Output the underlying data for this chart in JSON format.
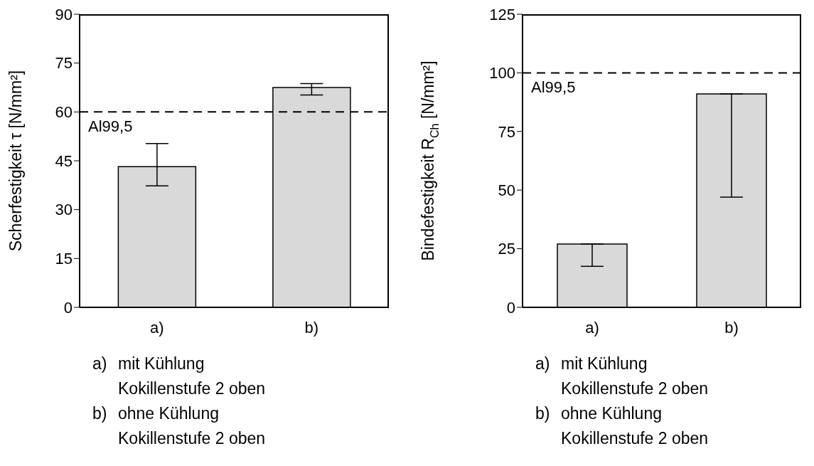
{
  "chart_data": [
    {
      "type": "bar",
      "ylabel": "Scherfestigkeit τ [N/mm²]",
      "categories": [
        "a)",
        "b)"
      ],
      "values": [
        43.2,
        67.5
      ],
      "color": "#d9d9d9",
      "errors": [
        [
          37.3,
          50.3
        ],
        [
          65.2,
          68.7
        ]
      ],
      "ylim": [
        0,
        90
      ],
      "yticks": [
        0,
        15,
        30,
        45,
        60,
        75,
        90
      ],
      "ref_lines": [
        {
          "axis": "y",
          "value": 60,
          "label": "Al99,5",
          "line_style": "dashed"
        }
      ],
      "annotations": [
        "a)",
        "mit Kühlung",
        "Kokillenstufe 2 oben",
        "b)",
        "ohne Kühlung",
        "Kokillenstufe 2 oben"
      ]
    },
    {
      "type": "bar",
      "ylabel": "Bindefestigkeit R$_{Ch}$ [N/mm²]",
      "categories": [
        "a)",
        "b)"
      ],
      "values": [
        27,
        91
      ],
      "color": "#d9d9d9",
      "errors": [
        [
          17.5,
          27
        ],
        [
          47,
          91
        ]
      ],
      "ylim": [
        0,
        125
      ],
      "yticks": [
        0,
        25,
        50,
        75,
        100,
        125
      ],
      "ref_lines": [
        {
          "axis": "y",
          "value": 100,
          "label": "Al99,5",
          "line_style": "dashed"
        }
      ],
      "annotations": [
        "a)",
        "mit Kühlung",
        "Kokillenstufe 2 oben",
        "b)",
        "ohne Kühlung",
        "Kokillenstufe 2 oben"
      ]
    }
  ]
}
